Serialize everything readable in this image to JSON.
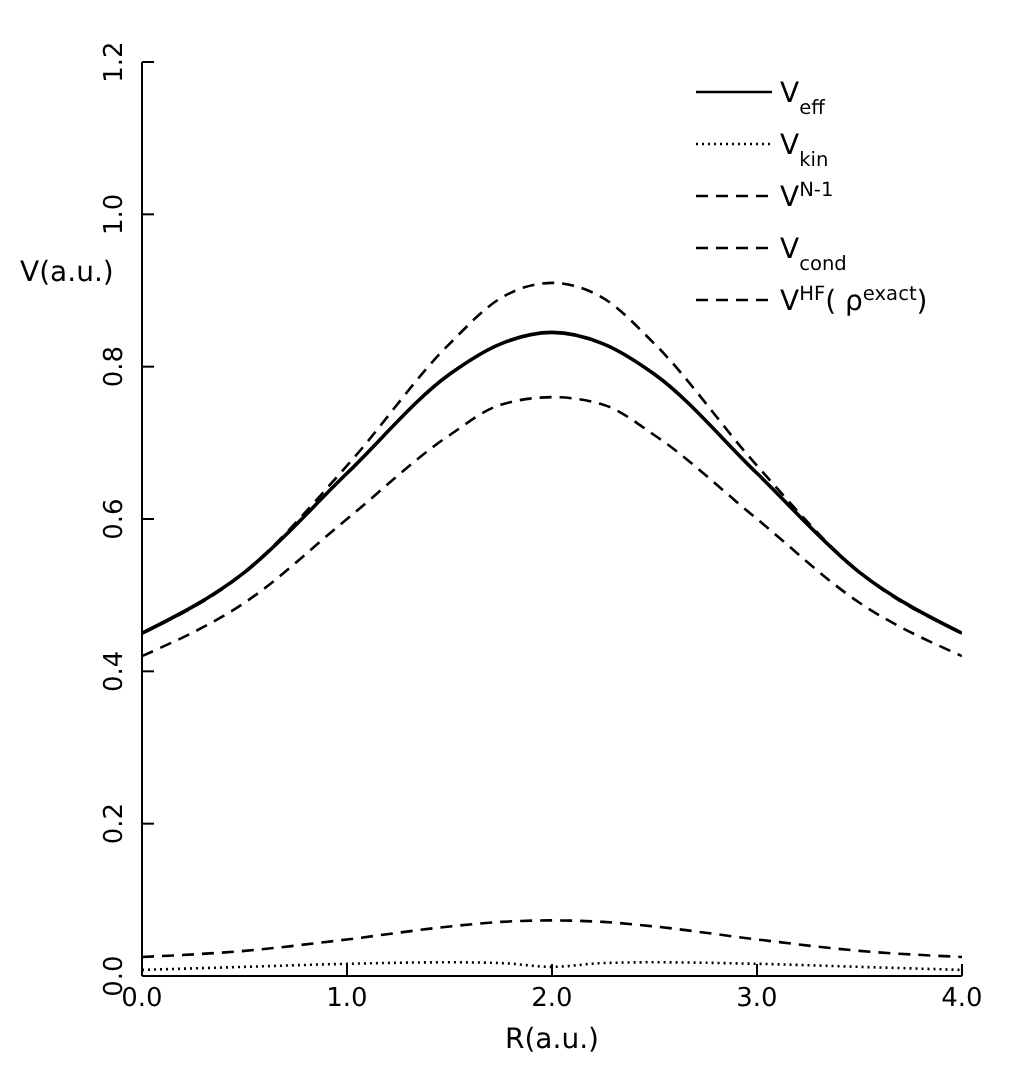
{
  "chart_data": {
    "type": "line",
    "xlabel": "R(a.u.)",
    "ylabel": "V(a.u.)",
    "x": [
      0,
      0.5,
      1,
      1.5,
      1.75,
      2,
      2.25,
      2.5,
      3,
      3.5,
      4
    ],
    "xlim": [
      0,
      4
    ],
    "xticks": [
      {
        "value": 0,
        "label": "0.0"
      },
      {
        "value": 1,
        "label": "1.0"
      },
      {
        "value": 2,
        "label": "2.0"
      },
      {
        "value": 3,
        "label": "3.0"
      },
      {
        "value": 4,
        "label": "4.0"
      }
    ],
    "ylim": [
      0,
      1.2
    ],
    "yticks": [
      {
        "value": 0,
        "label": "0.0"
      },
      {
        "value": 0.2,
        "label": "0.2"
      },
      {
        "value": 0.4,
        "label": "0.4"
      },
      {
        "value": 0.6,
        "label": "0.6"
      },
      {
        "value": 0.8,
        "label": "0.8"
      },
      {
        "value": 1,
        "label": "1.0"
      },
      {
        "value": 1.2,
        "label": "1.2"
      }
    ],
    "grid": false,
    "legend": "top right",
    "marker": "none",
    "series": [
      {
        "name": "V$_{eff}$",
        "color": "#000000",
        "line_style": "solid",
        "values": [
          0.45,
          0.53,
          0.66,
          0.79,
          0.83,
          0.845,
          0.83,
          0.79,
          0.66,
          0.53,
          0.45
        ]
      },
      {
        "name": "V$_{kin}$",
        "color": "#000000",
        "line_style": "dotted",
        "values": [
          0.008,
          0.012,
          0.016,
          0.018,
          0.017,
          0.012,
          0.017,
          0.018,
          0.016,
          0.012,
          0.008
        ]
      },
      {
        "name": "V$^{N-1}$",
        "color": "#000000",
        "line_style": "dashed",
        "values": [
          0.025,
          0.033,
          0.048,
          0.065,
          0.071,
          0.073,
          0.071,
          0.065,
          0.048,
          0.033,
          0.025
        ]
      },
      {
        "name": "V$_{cond}$",
        "color": "#000000",
        "line_style": "dashed",
        "values": [
          0.42,
          0.49,
          0.6,
          0.71,
          0.75,
          0.76,
          0.75,
          0.71,
          0.6,
          0.49,
          0.42
        ]
      },
      {
        "name": "V$^{HF}$( ρ$^{exact}$)",
        "color": "#000000",
        "line_style": "dashed",
        "values": [
          0.45,
          0.53,
          0.67,
          0.83,
          0.89,
          0.91,
          0.89,
          0.83,
          0.67,
          0.53,
          0.45
        ]
      }
    ]
  }
}
